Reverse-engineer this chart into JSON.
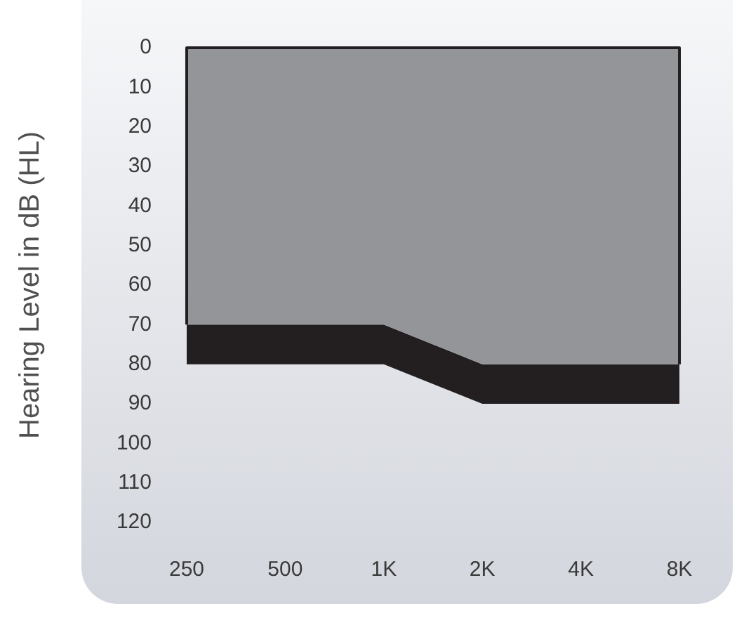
{
  "chart_data": {
    "type": "area",
    "ylabel": "Hearing Level in dB (HL)",
    "categories": [
      "250",
      "500",
      "1K",
      "2K",
      "4K",
      "8K"
    ],
    "stacked": true,
    "series": [
      {
        "color": "#939598",
        "values": [
          70,
          70,
          70,
          80,
          80,
          80
        ]
      },
      {
        "color": "#231f20",
        "values": [
          10,
          10,
          10,
          10,
          10,
          10
        ]
      }
    ],
    "ylim": [
      120,
      0
    ],
    "yticks": [
      0,
      10,
      20,
      30,
      40,
      50,
      60,
      70,
      80,
      90,
      100,
      110,
      120
    ],
    "grid": false,
    "legend": false
  }
}
